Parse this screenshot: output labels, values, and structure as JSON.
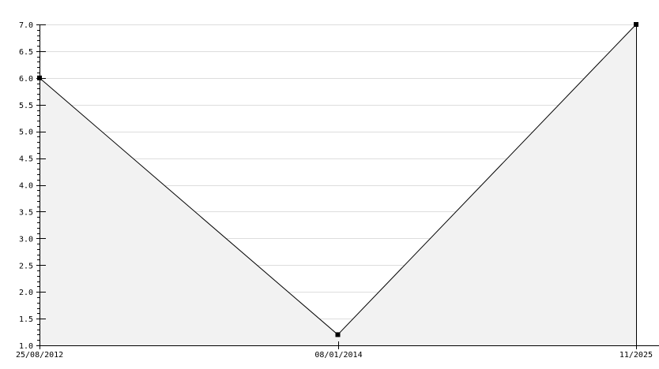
{
  "chart_data": {
    "type": "area",
    "title": "",
    "xlabel": "",
    "ylabel": "",
    "categories": [
      "25/08/2012",
      "08/01/2014",
      "11/2025"
    ],
    "values": [
      6.0,
      1.2,
      7.0
    ],
    "ylim": [
      1.0,
      7.0
    ],
    "y_major_step": 0.5,
    "y_minor_step": 0.1,
    "y_tick_labels": [
      "1.0",
      "1.5",
      "2.0",
      "2.5",
      "3.0",
      "3.5",
      "4.0",
      "4.5",
      "5.0",
      "5.5",
      "6.0",
      "6.5",
      "7.0"
    ],
    "grid": true,
    "legend": "none",
    "colors": {
      "line": "#000000",
      "fill": "#f2f2f2",
      "grid": "#dddddd",
      "marker": "#000000"
    }
  }
}
